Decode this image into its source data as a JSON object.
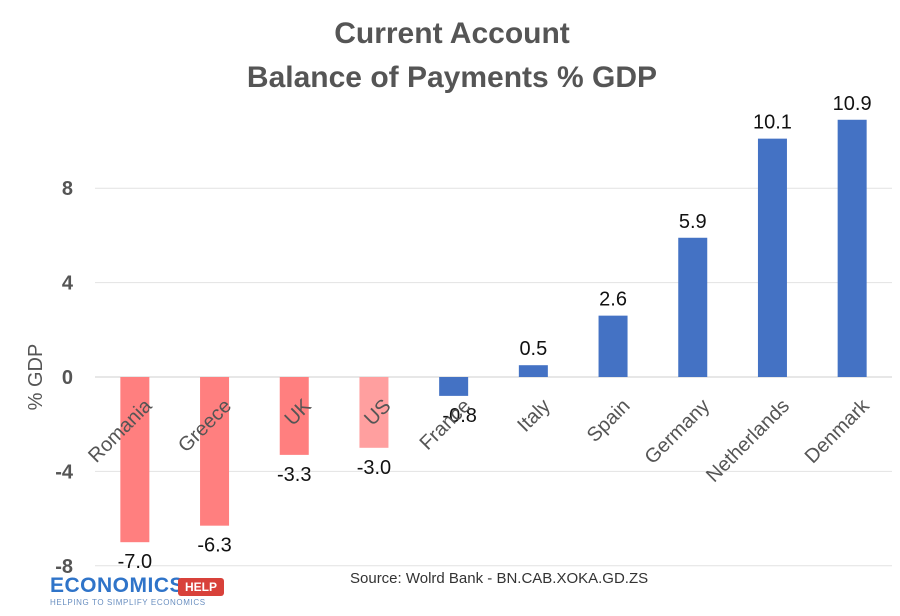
{
  "chart_data": {
    "type": "bar",
    "title": [
      "Current Account",
      "Balance of Payments % GDP"
    ],
    "ylabel": "% GDP",
    "categories": [
      "Romania",
      "Greece",
      "UK",
      "US",
      "France",
      "Italy",
      "Spain",
      "Germany",
      "Netherlands",
      "Denmark"
    ],
    "values": [
      -7.0,
      -6.3,
      -3.3,
      -3.0,
      -0.8,
      0.5,
      2.6,
      5.9,
      10.1,
      10.9
    ],
    "data_labels": [
      "-7.0",
      "-6.3",
      "-3.3",
      "-3.0",
      "-0.8",
      "0.5",
      "2.6",
      "5.9",
      "10.1",
      "10.9"
    ],
    "bar_colors": [
      "#ff7f7f",
      "#ff7f7f",
      "#ff7f7f",
      "#ff9f9f",
      "#4472c4",
      "#4472c4",
      "#4472c4",
      "#4472c4",
      "#4472c4",
      "#4472c4"
    ],
    "ylim": [
      -8,
      12
    ],
    "yticks": [
      -8,
      -4,
      0,
      4,
      8
    ],
    "ytick_labels": [
      "-8",
      "-4",
      "0",
      "4",
      "8"
    ],
    "grid": true,
    "legend": "none"
  },
  "source": "Source: Wolrd Bank - BN.CAB.XOKA.GD.ZS",
  "logo": {
    "name": "ECONOMICS",
    "badge": "HELP",
    "tagline": "HELPING TO SIMPLIFY ECONOMICS"
  }
}
